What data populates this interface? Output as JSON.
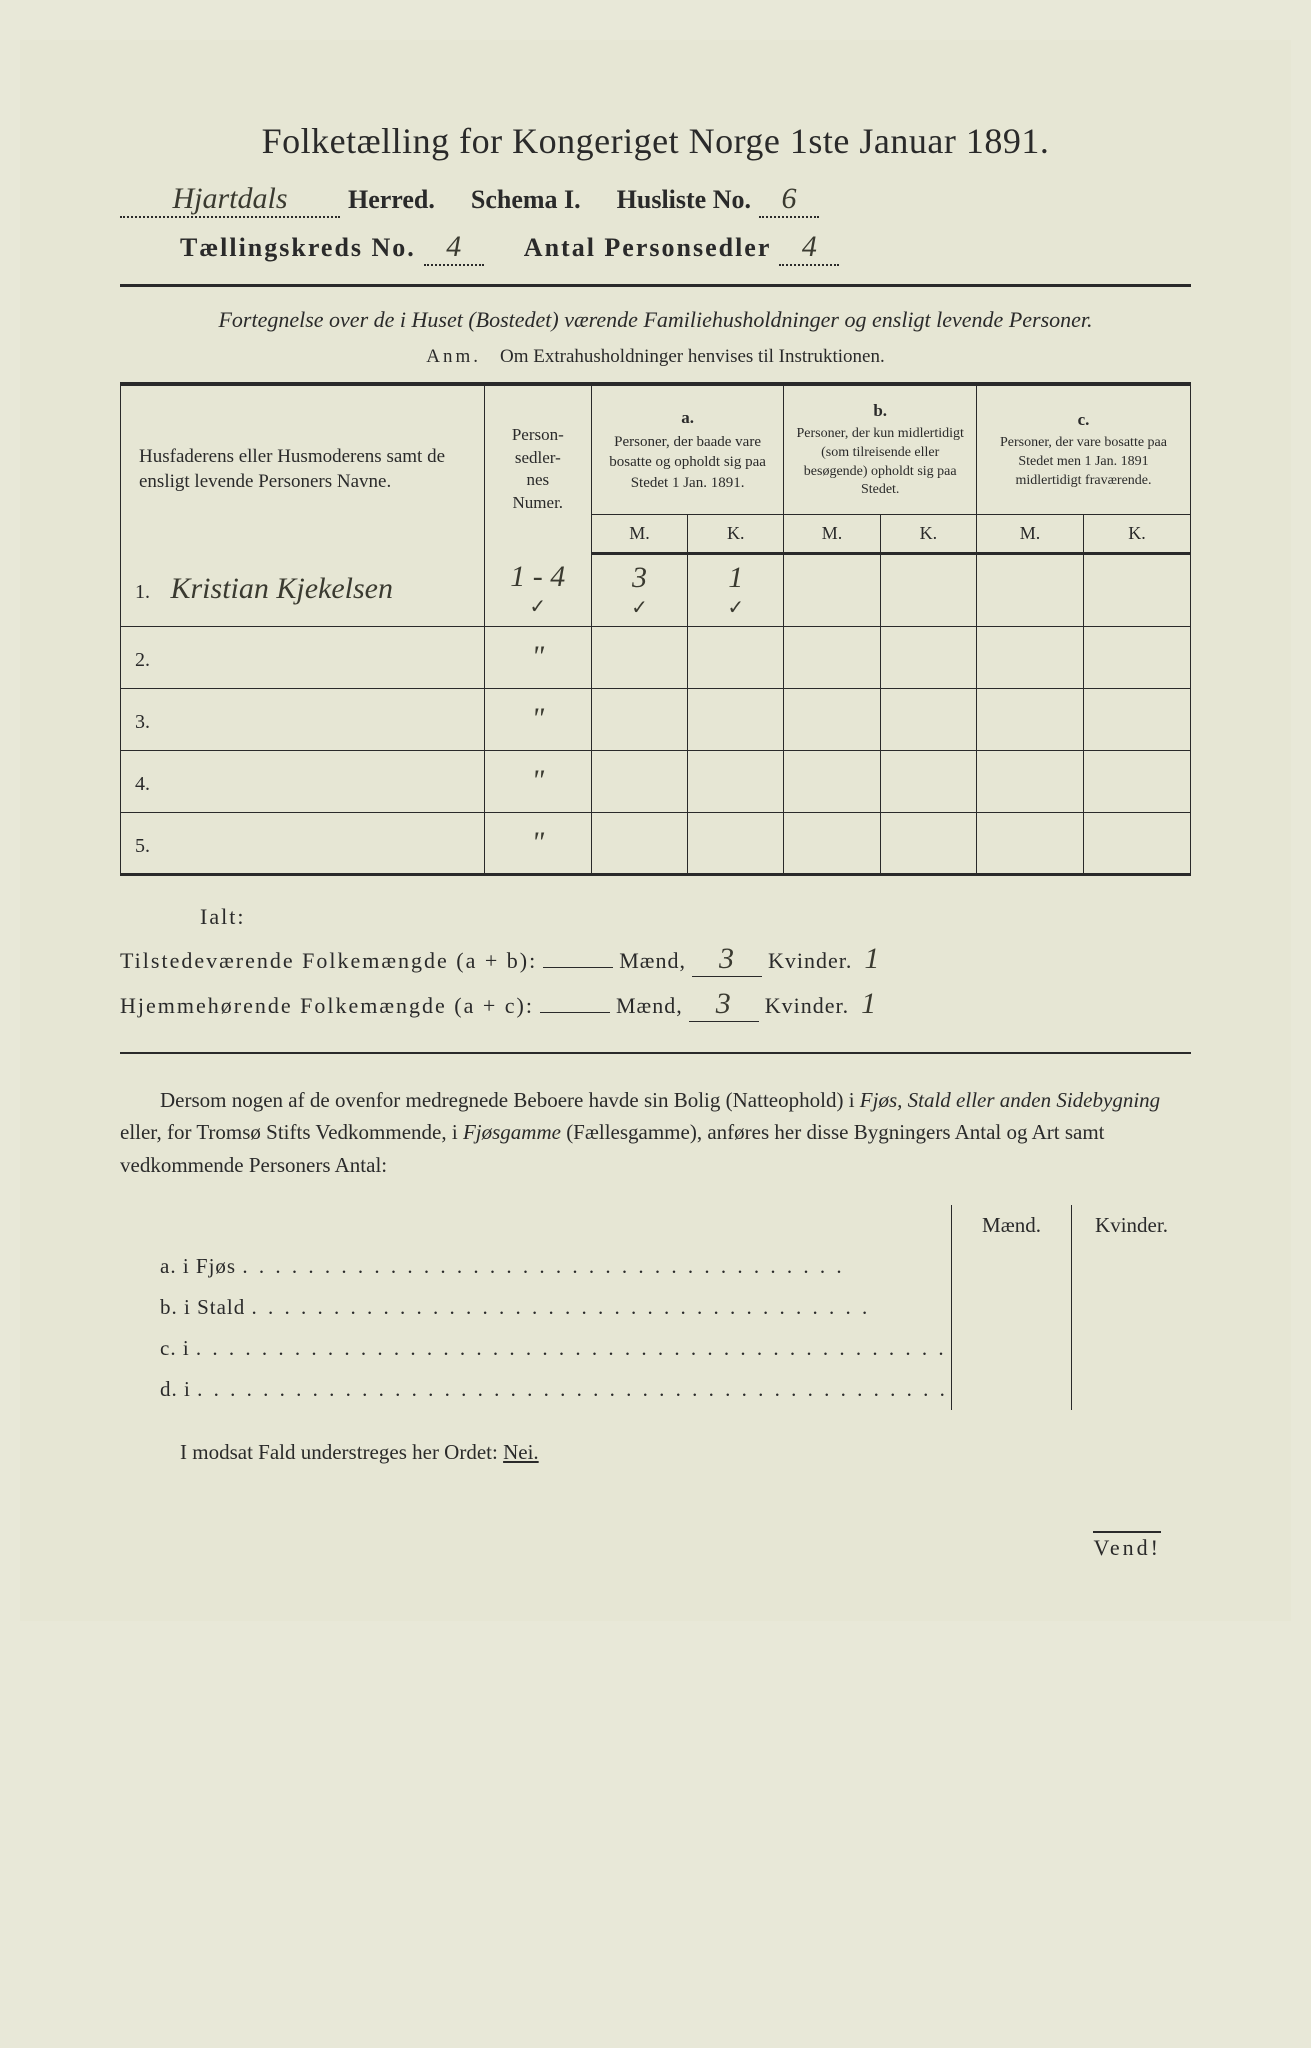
{
  "title": "Folketælling for Kongeriget Norge 1ste Januar 1891.",
  "header": {
    "herred_hw": "Hjartdals",
    "herred_label": "Herred.",
    "schema_label": "Schema I.",
    "husliste_label": "Husliste No.",
    "husliste_no_hw": "6",
    "kreds_label": "Tællingskreds No.",
    "kreds_no_hw": "4",
    "antal_label": "Antal Personsedler",
    "antal_hw": "4"
  },
  "subtitle": "Fortegnelse over de i Huset (Bostedet) værende Familiehusholdninger og ensligt levende Personer.",
  "anm_label": "Anm.",
  "anm_text": "Om Extrahusholdninger henvises til Instruktionen.",
  "table": {
    "col_main": "Husfaderens eller Husmoderens samt de ensligt levende Personers Navne.",
    "col_numer": "Person-\nsedler-\nnes\nNumer.",
    "col_a_letter": "a.",
    "col_a": "Personer, der baade vare bosatte og opholdt sig paa Stedet 1 Jan. 1891.",
    "col_b_letter": "b.",
    "col_b": "Personer, der kun midlertidigt (som tilreisende eller besøgende) opholdt sig paa Stedet.",
    "col_c_letter": "c.",
    "col_c": "Personer, der vare bosatte paa Stedet men 1 Jan. 1891 midlertidigt fraværende.",
    "m": "M.",
    "k": "K.",
    "rows": [
      {
        "n": "1.",
        "name_hw": "Kristian Kjekelsen",
        "numer_hw": "1 - 4",
        "a_m": "3",
        "a_k": "1",
        "b_m": "",
        "b_k": "",
        "c_m": "",
        "c_k": ""
      },
      {
        "n": "2.",
        "name_hw": "",
        "numer_hw": "\"",
        "a_m": "",
        "a_k": "",
        "b_m": "",
        "b_k": "",
        "c_m": "",
        "c_k": ""
      },
      {
        "n": "3.",
        "name_hw": "",
        "numer_hw": "\"",
        "a_m": "",
        "a_k": "",
        "b_m": "",
        "b_k": "",
        "c_m": "",
        "c_k": ""
      },
      {
        "n": "4.",
        "name_hw": "",
        "numer_hw": "\"",
        "a_m": "",
        "a_k": "",
        "b_m": "",
        "b_k": "",
        "c_m": "",
        "c_k": ""
      },
      {
        "n": "5.",
        "name_hw": "",
        "numer_hw": "\"",
        "a_m": "",
        "a_k": "",
        "b_m": "",
        "b_k": "",
        "c_m": "",
        "c_k": ""
      }
    ]
  },
  "ialt": {
    "label": "Ialt:",
    "line1_a": "Tilstedeværende Folkemængde (a + b):",
    "line2_a": "Hjemmehørende Folkemængde (a + c):",
    "maend": "Mænd,",
    "kvinder": "Kvinder.",
    "tm": "3",
    "tk": "1",
    "hm": "3",
    "hk": "1"
  },
  "para": "Dersom nogen af de ovenfor medregnede Beboere havde sin Bolig (Natteophold) i Fjøs, Stald eller anden Sidebygning eller, for Tromsø Stifts Vedkommende, i Fjøsgamme (Fællesgamme), anføres her disse Bygningers Antal og Art samt vedkommende Personers Antal:",
  "sidebygning": {
    "head_m": "Mænd.",
    "head_k": "Kvinder.",
    "rows": [
      {
        "label": "a.  i      Fjøs",
        "dots": ". . . . . . . . . . . . . .   . . . . . . . . . . . . . . . . . . . . . . ."
      },
      {
        "label": "b.  i      Stald",
        "dots": " . . . . . . . . . . . . . . . . . . . . . . . . . . . . . . . . . . . . . ."
      },
      {
        "label": "c.  i",
        "dots": " . . . . . . . . . . . . . . . . . . . . . . . . . . . . . . . . . . . . . . . . . . . . . ."
      },
      {
        "label": "d.  i",
        "dots": " . . . . . . . . . . . . . . . . . . . . . . . . . . . . . . . . . . . . . . . . . . . . . ."
      }
    ]
  },
  "footer": {
    "text_a": "I modsat Fald understreges her Ordet: ",
    "nei": "Nei.",
    "vend": "Vend!"
  },
  "colors": {
    "bg": "#e6e6d4",
    "ink": "#2a2a2a",
    "hw": "#3a3a30"
  }
}
